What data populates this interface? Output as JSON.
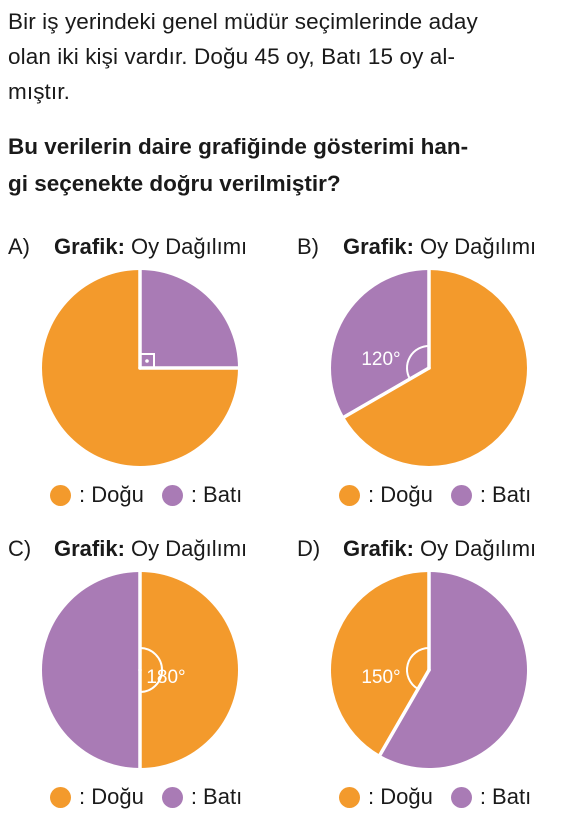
{
  "question": {
    "lines": [
      "Bir iş yerindeki genel müdür seçimlerinde aday",
      "olan iki kişi vardır. Doğu 45 oy, Batı 15 oy al-",
      "mıştır."
    ]
  },
  "prompt": {
    "lines": [
      "Bu verilerin daire grafiğinde gösterimi han-",
      "gi seçenekte doğru verilmiştir?"
    ]
  },
  "colors": {
    "dogu": "#F39A2C",
    "bati": "#A97BB5"
  },
  "options": [
    {
      "letter": "A)",
      "title_bold": "Grafik:",
      "title": " Oy Dağılımı",
      "legend": [
        ": Doğu",
        ": Batı"
      ],
      "chart_data": {
        "type": "pie",
        "slices": [
          {
            "label": "Doğu",
            "degrees": 270
          },
          {
            "label": "Batı",
            "degrees": 90
          }
        ],
        "angle_label": "",
        "right_angle_mark": true
      }
    },
    {
      "letter": "B)",
      "title_bold": "Grafik:",
      "title": " Oy Dağılımı",
      "legend": [
        ": Doğu",
        ": Batı"
      ],
      "chart_data": {
        "type": "pie",
        "slices": [
          {
            "label": "Doğu",
            "degrees": 240
          },
          {
            "label": "Batı",
            "degrees": 120
          }
        ],
        "angle_label": "120°",
        "right_angle_mark": false
      }
    },
    {
      "letter": "C)",
      "title_bold": "Grafik:",
      "title": " Oy Dağılımı",
      "legend": [
        ": Doğu",
        ": Batı"
      ],
      "chart_data": {
        "type": "pie",
        "slices": [
          {
            "label": "Doğu",
            "degrees": 180
          },
          {
            "label": "Batı",
            "degrees": 180
          }
        ],
        "angle_label": "180°",
        "right_angle_mark": false
      }
    },
    {
      "letter": "D)",
      "title_bold": "Grafik:",
      "title": " Oy Dağılımı",
      "legend": [
        ": Doğu",
        ": Batı"
      ],
      "chart_data": {
        "type": "pie",
        "slices": [
          {
            "label": "Doğu",
            "degrees": 150
          },
          {
            "label": "Batı",
            "degrees": 210
          }
        ],
        "angle_label": "150°",
        "right_angle_mark": false
      }
    }
  ]
}
